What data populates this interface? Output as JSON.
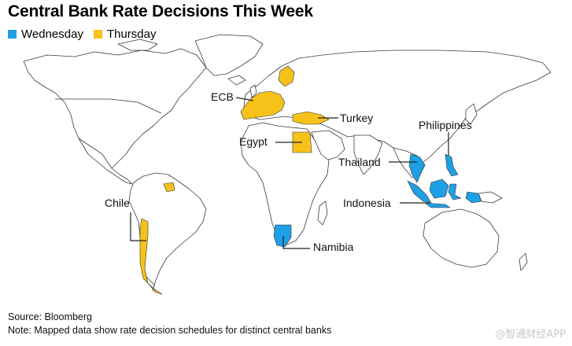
{
  "title": "Central Bank Rate Decisions This Week",
  "legend": [
    {
      "label": "Wednesday",
      "color": "#1ea0e6"
    },
    {
      "label": "Thursday",
      "color": "#f6c21a"
    }
  ],
  "regions": {
    "ecb": {
      "label": "ECB",
      "day": "Thursday"
    },
    "turkey": {
      "label": "Turkey",
      "day": "Thursday"
    },
    "egypt": {
      "label": "Egypt",
      "day": "Thursday"
    },
    "chile": {
      "label": "Chile",
      "day": "Thursday"
    },
    "namibia": {
      "label": "Namibia",
      "day": "Wednesday"
    },
    "thailand": {
      "label": "Thailand",
      "day": "Wednesday"
    },
    "indonesia": {
      "label": "Indonesia",
      "day": "Wednesday"
    },
    "philippines": {
      "label": "Philippines",
      "day": "Wednesday"
    }
  },
  "source": "Source: Bloomberg",
  "note": "Note: Mapped data show rate decision schedules for distinct central banks",
  "watermark": "@智通财经APP"
}
